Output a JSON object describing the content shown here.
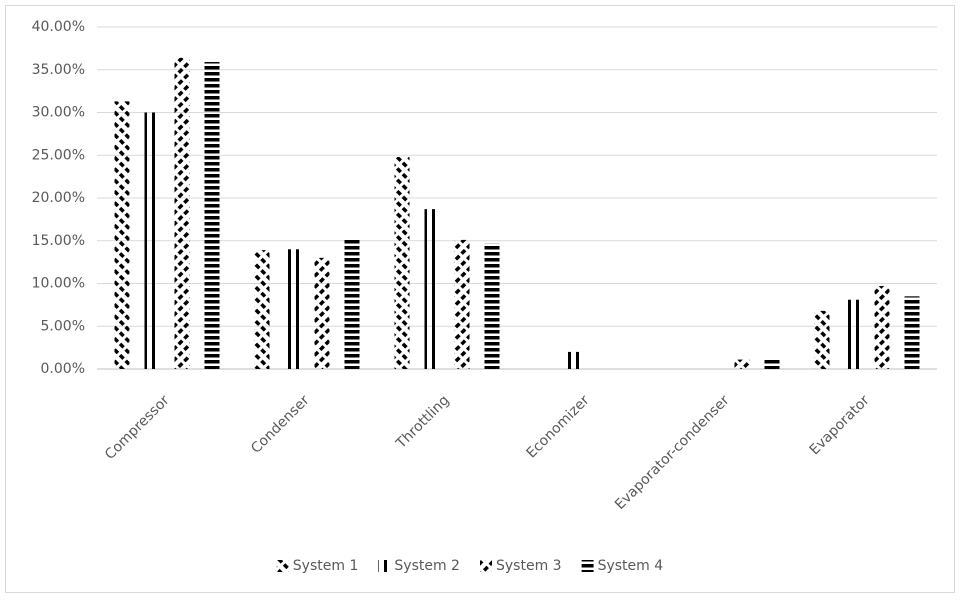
{
  "chart_data": {
    "type": "bar",
    "categories": [
      "Compressor",
      "Condenser",
      "Throttling",
      "Economizer",
      "Evaporator-condenser",
      "Evaporator"
    ],
    "series": [
      {
        "name": "System 1",
        "color": "#000000",
        "pattern": "diagonal-down",
        "values": [
          31.3,
          13.9,
          24.8,
          0,
          0,
          6.8
        ]
      },
      {
        "name": "System 2",
        "color": "#000000",
        "pattern": "vertical",
        "values": [
          30.0,
          14.0,
          18.7,
          2.0,
          0,
          8.1
        ]
      },
      {
        "name": "System 3",
        "color": "#000000",
        "pattern": "diagonal-up",
        "values": [
          36.4,
          13.0,
          15.1,
          0,
          1.1,
          9.7
        ]
      },
      {
        "name": "System 4",
        "color": "#000000",
        "pattern": "horizontal",
        "values": [
          35.9,
          15.3,
          14.7,
          0,
          1.1,
          8.5
        ]
      }
    ],
    "ylim": [
      0,
      40
    ],
    "yticks": [
      {
        "value": 0,
        "label": "0.00%"
      },
      {
        "value": 5,
        "label": "5.00%"
      },
      {
        "value": 10,
        "label": "10.00%"
      },
      {
        "value": 15,
        "label": "15.00%"
      },
      {
        "value": 20,
        "label": "20.00%"
      },
      {
        "value": 25,
        "label": "25.00%"
      },
      {
        "value": 30,
        "label": "30.00%"
      },
      {
        "value": 35,
        "label": "35.00%"
      },
      {
        "value": 40,
        "label": "40.00%"
      }
    ],
    "grid": true,
    "legend": "bottom"
  }
}
